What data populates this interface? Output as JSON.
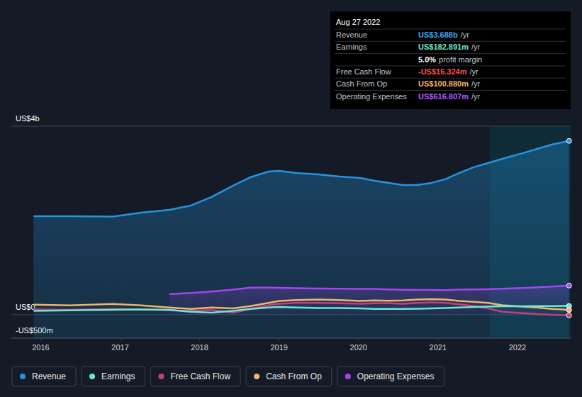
{
  "chart_data": {
    "type": "line",
    "x": [
      2015.91,
      2016.37,
      2016.91,
      2017.26,
      2017.62,
      2017.89,
      2018.15,
      2018.42,
      2018.64,
      2018.87,
      2019.0,
      2019.22,
      2019.49,
      2019.76,
      2020.02,
      2020.2,
      2020.38,
      2020.56,
      2020.74,
      2020.92,
      2021.09,
      2021.27,
      2021.45,
      2021.63,
      2021.81,
      2022.07,
      2022.25,
      2022.43,
      2022.65
    ],
    "xlim": [
      2015.63,
      2022.67
    ],
    "xticks": [
      2016,
      2017,
      2018,
      2019,
      2020,
      2021,
      2022
    ],
    "ylim": [
      -500,
      4000
    ],
    "yticks": [
      {
        "value": -500,
        "label": "-US$500m"
      },
      {
        "value": 0,
        "label": "US$0"
      },
      {
        "value": 4000,
        "label": "US$4b"
      }
    ],
    "grid": true,
    "legend": "bottom",
    "series": [
      {
        "name": "Revenue",
        "type": "area",
        "color": "#2394df",
        "values": [
          2090,
          2090,
          2080,
          2165,
          2226,
          2316,
          2496,
          2737,
          2917,
          3038,
          3053,
          3008,
          2977,
          2932,
          2902,
          2842,
          2797,
          2752,
          2752,
          2797,
          2872,
          3008,
          3128,
          3218,
          3308,
          3429,
          3519,
          3609,
          3688
        ]
      },
      {
        "name": "Earnings",
        "type": "line",
        "color": "#6ee7d2",
        "values": [
          80,
          90,
          100,
          110,
          100,
          60,
          40,
          80,
          120,
          150,
          160,
          150,
          140,
          140,
          130,
          120,
          120,
          120,
          125,
          130,
          140,
          150,
          160,
          170,
          175,
          178,
          180,
          182,
          183
        ]
      },
      {
        "name": "Free Cash Flow",
        "type": "line",
        "color": "#c2407a",
        "values": [
          110,
          100,
          120,
          110,
          90,
          80,
          100,
          40,
          120,
          200,
          230,
          250,
          250,
          240,
          230,
          240,
          240,
          230,
          250,
          260,
          250,
          220,
          180,
          130,
          60,
          30,
          10,
          -5,
          -16
        ]
      },
      {
        "name": "Cash From Op",
        "type": "line",
        "color": "#f0b46b",
        "values": [
          210,
          195,
          225,
          195,
          150,
          120,
          150,
          130,
          180,
          250,
          290,
          310,
          320,
          310,
          290,
          300,
          295,
          300,
          320,
          330,
          320,
          290,
          270,
          250,
          200,
          170,
          150,
          120,
          101
        ]
      },
      {
        "name": "Operating Expenses",
        "type": "area",
        "color": "#a745f0",
        "values": [
          null,
          null,
          null,
          null,
          436,
          460,
          490,
          530,
          571,
          571,
          568,
          560,
          555,
          550,
          548,
          545,
          535,
          528,
          525,
          522,
          520,
          530,
          535,
          540,
          550,
          565,
          580,
          595,
          617
        ]
      }
    ]
  },
  "tooltip": {
    "date": "Aug 27 2022",
    "rows": [
      {
        "label": "Revenue",
        "value": "US$3.688b",
        "unit": "/yr",
        "color": "#3ea7f2"
      },
      {
        "label": "Earnings",
        "value": "US$182.891m",
        "unit": "/yr",
        "color": "#6ee7d2"
      },
      {
        "value": "5.0%",
        "text": "profit margin",
        "color": "#ffffff"
      },
      {
        "label": "Free Cash Flow",
        "value": "-US$16.324m",
        "unit": "/yr",
        "color": "#ff4d4d"
      },
      {
        "label": "Cash From Op",
        "value": "US$100.880m",
        "unit": "/yr",
        "color": "#f5b26b"
      },
      {
        "label": "Operating Expenses",
        "value": "US$616.807m",
        "unit": "/yr",
        "color": "#b05cff"
      }
    ]
  }
}
